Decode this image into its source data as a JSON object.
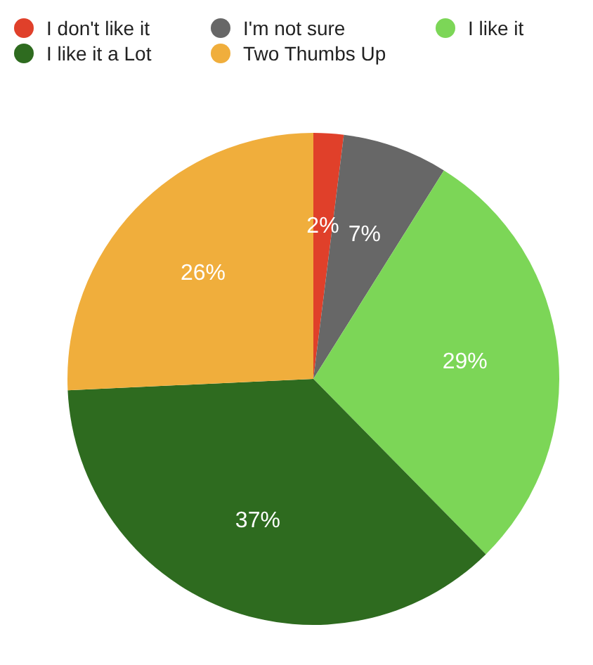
{
  "chart_data": {
    "type": "pie",
    "categories": [
      "I don't like it",
      "I'm not sure",
      "I like it",
      "I like it a Lot",
      "Two Thumbs Up"
    ],
    "values": [
      2,
      7,
      29,
      37,
      26
    ],
    "colors": [
      "#e0402a",
      "#676767",
      "#7cd657",
      "#2e6b1f",
      "#f0ae3c"
    ],
    "value_labels": [
      "2%",
      "7%",
      "29%",
      "37%",
      "26%"
    ],
    "legend": "top"
  }
}
